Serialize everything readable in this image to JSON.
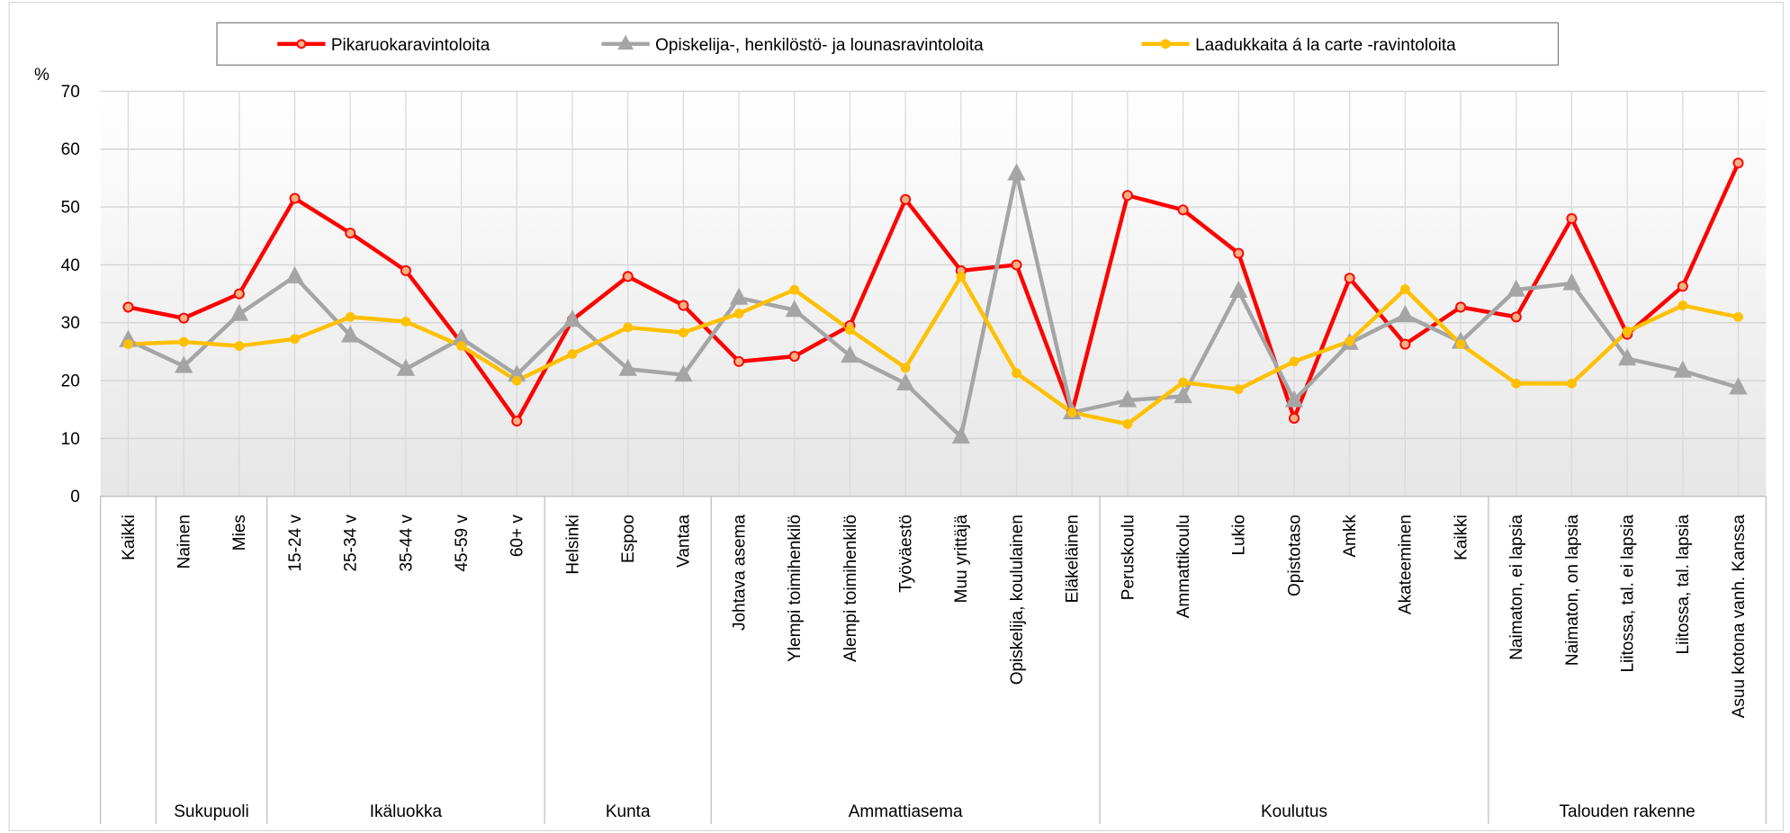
{
  "chart_data": {
    "type": "line",
    "y_label": "%",
    "categories": [
      "Kaikki",
      "Nainen",
      "Mies",
      "15-24 v",
      "25-34 v",
      "35-44 v",
      "45-59 v",
      "60+ v",
      "Helsinki",
      "Espoo",
      "Vantaa",
      "Johtava asema",
      "Ylempi toimihenkilö",
      "Alempi toimihenkilö",
      "Työväestö",
      "Muu yrittäjä",
      "Opiskelija,  koululainen",
      "Eläkeläinen",
      "Peruskoulu",
      "Ammattikoulu",
      "Lukio",
      "Opistotaso",
      "Amkk",
      "Akateeminen",
      "Kaikki",
      "Naimaton, ei lapsia",
      "Naimaton, on lapsia",
      "Liitossa, tal. ei lapsia",
      "Liitossa, tal. lapsia",
      "Asuu kotona vanh. Kanssa"
    ],
    "groups": [
      {
        "name": null,
        "size": 1
      },
      {
        "name": "Sukupuoli",
        "size": 2
      },
      {
        "name": "Ikäluokka",
        "size": 5
      },
      {
        "name": "Kunta",
        "size": 3
      },
      {
        "name": "Ammattiasema",
        "size": 7
      },
      {
        "name": "Koulutus",
        "size": 7
      },
      {
        "name": "Talouden  rakenne",
        "size": 5
      }
    ],
    "series": [
      {
        "name": "Pikaruokaravintoloita",
        "color": "#ff0000",
        "marker": "circle",
        "values": [
          32.7,
          30.8,
          35,
          51.5,
          45.5,
          39,
          26.5,
          13,
          30.5,
          38,
          33,
          23.3,
          24.2,
          29.5,
          51.3,
          39,
          40,
          14.5,
          52,
          49.5,
          42,
          13.5,
          37.7,
          26.3,
          32.7,
          31,
          48,
          28,
          36.3,
          57.6
        ]
      },
      {
        "name": "Opiskelija-, henkilöstö- ja lounasravintoloita",
        "color": "#a5a5a5",
        "marker": "triangle",
        "values": [
          27,
          22.5,
          31.5,
          38,
          27.8,
          22,
          27.3,
          21,
          30.5,
          22,
          21,
          34.3,
          32.2,
          24.3,
          19.5,
          10.3,
          55.8,
          14.5,
          16.6,
          17.3,
          35.5,
          16.6,
          26.5,
          31.3,
          26.7,
          35.7,
          36.8,
          23.8,
          21.7,
          18.8
        ]
      },
      {
        "name": "Laadukkaita á la carte -ravintoloita",
        "color": "#ffc000",
        "marker": "circle",
        "values": [
          26.3,
          26.7,
          26,
          27.2,
          31,
          30.2,
          26,
          20,
          24.6,
          29.2,
          28.3,
          31.6,
          35.7,
          28.8,
          22.2,
          38,
          21.3,
          14.5,
          12.5,
          19.7,
          18.5,
          23.3,
          26.8,
          35.8,
          26.3,
          19.5,
          19.5,
          28.5,
          33,
          31
        ]
      }
    ],
    "ylim": [
      0,
      70
    ],
    "yticks": [
      0,
      10,
      20,
      30,
      40,
      50,
      60,
      70
    ],
    "grid": true,
    "legend": "top"
  }
}
